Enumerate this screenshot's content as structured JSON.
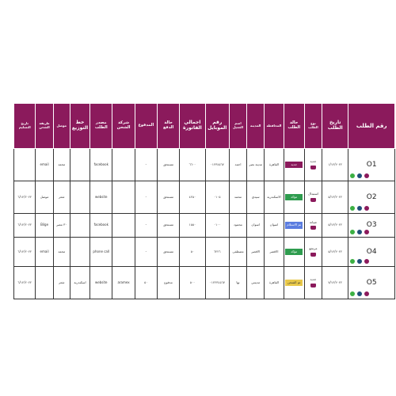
{
  "table": {
    "headers": [
      {
        "key": "order_no",
        "label": "رقم الطلب",
        "fs": "fs7"
      },
      {
        "key": "order_date",
        "label": "تاريخ الطلب",
        "fs": "fs6"
      },
      {
        "key": "order_type",
        "label": "نوع الطلب",
        "fs": "fs4"
      },
      {
        "key": "order_status",
        "label": "حالة الطلب",
        "fs": "fs5"
      },
      {
        "key": "governorate",
        "label": "المحافظة",
        "fs": "fs4"
      },
      {
        "key": "city",
        "label": "المدينة",
        "fs": "fs4"
      },
      {
        "key": "client_name",
        "label": "اسم العميل",
        "fs": "fs4"
      },
      {
        "key": "mobile",
        "label": "رقم الموبايل",
        "fs": "fs6"
      },
      {
        "key": "invoice_total",
        "label": "اجمالي الفاتورة",
        "fs": "fs6"
      },
      {
        "key": "payment_status",
        "label": "حالة الدفع",
        "fs": "fs5"
      },
      {
        "key": "paid",
        "label": "المدفوع",
        "fs": "fs5"
      },
      {
        "key": "shipping_company",
        "label": "شركة الشحن",
        "fs": "fs5"
      },
      {
        "key": "order_source",
        "label": "مصدر الطلب",
        "fs": "fs5"
      },
      {
        "key": "distribution_line",
        "label": "خط التوزيع",
        "fs": "fs6"
      },
      {
        "key": "delivery",
        "label": "موصل",
        "fs": "fs4"
      },
      {
        "key": "shipping_method",
        "label": "طريقة الشحن",
        "fs": "fs4"
      },
      {
        "key": "delivery_date",
        "label": "تاريخ التسليم",
        "fs": "fs4"
      }
    ],
    "rows": [
      {
        "order_no": "O1",
        "order_date": "١/١٢/٢٠٢٢",
        "order_type": "جديد",
        "order_status": "جديد",
        "status_class": "b-new",
        "governorate": "القاهرة",
        "city": "مدينة نصر",
        "client_name": "احمد",
        "mobile": "٠١٢٣٤٥٦٧",
        "invoice_total": "٦٦٠٠",
        "payment_status": "مستحق",
        "paid": "-",
        "shipping_company": "",
        "order_source": "facebook",
        "distribution_line": "",
        "delivery": "محمد",
        "shipping_method": "email",
        "delivery_date": ""
      },
      {
        "order_no": "O2",
        "order_date": "٥/١٢/٢٠٢٢",
        "order_type": "استبدال",
        "order_status": "مؤكد",
        "status_class": "b-done",
        "governorate": "الاسكندرية",
        "city": "سيدي",
        "client_name": "محمد",
        "mobile": "٠١٠٥",
        "invoice_total": "٤٢٥٠",
        "payment_status": "مستحق",
        "paid": "-",
        "shipping_company": "",
        "order_source": "website",
        "distribution_line": "",
        "delivery": "شعر",
        "shipping_method": "موصل",
        "delivery_date": "٦/١٢/٢٠٢٢"
      },
      {
        "order_no": "O3",
        "order_date": "٥/١٢/٢٠٢٢",
        "order_type": "صيانة",
        "order_status": "تم الاستلام",
        "status_class": "b-ship",
        "governorate": "اسوان",
        "city": "اسوان",
        "client_name": "محمود",
        "mobile": "٠١٠٠",
        "invoice_total": "١٥٥٠",
        "payment_status": "مستحق",
        "paid": "-",
        "shipping_company": "",
        "order_source": "facebook",
        "distribution_line": "",
        "delivery": "٣٠ مصر",
        "shipping_method": "Bilge",
        "delivery_date": "٦/١٢/٢٠٢٢"
      },
      {
        "order_no": "O4",
        "order_date": "٥/١٢/٢٠٢٢",
        "order_type": "مرتجع",
        "order_status": "مؤكد",
        "status_class": "b-done",
        "governorate": "الاقصر",
        "city": "الاقصر",
        "client_name": "مصطفى",
        "mobile": "٦٢٢٦",
        "invoice_total": "٥٠",
        "payment_status": "مستحق",
        "paid": "-",
        "shipping_company": "",
        "order_source": "phone call",
        "distribution_line": "",
        "delivery": "محمد",
        "shipping_method": "email",
        "delivery_date": "٦/١٢/٢٠٢٢"
      },
      {
        "order_no": "O5",
        "order_date": "٧/١٢/٢٠٢٢",
        "order_type": "جديد",
        "order_status": "تم الشحن",
        "status_class": "b-wait",
        "governorate": "القاهرة",
        "city": "مدينتي",
        "client_name": "نها",
        "mobile": "٠١٢٢٣٤٥٦٧",
        "invoice_total": "٥٠٠",
        "payment_status": "مدفوع",
        "paid": "٥٠",
        "shipping_company": "aramex",
        "order_source": "website",
        "distribution_line": "اسكندرية",
        "delivery": "شعر",
        "shipping_method": "",
        "delivery_date": "٦/١٢/٢٠٢٢"
      }
    ]
  },
  "colors": {
    "header_bg": "#8b1a5c",
    "confirmed": "#2e9c4e",
    "received": "#5b7de0",
    "shipped": "#e8c84a"
  },
  "icons": {
    "view": "eye-icon",
    "call": "phone-icon",
    "whatsapp": "whatsapp-icon",
    "bag": "bag-icon"
  }
}
